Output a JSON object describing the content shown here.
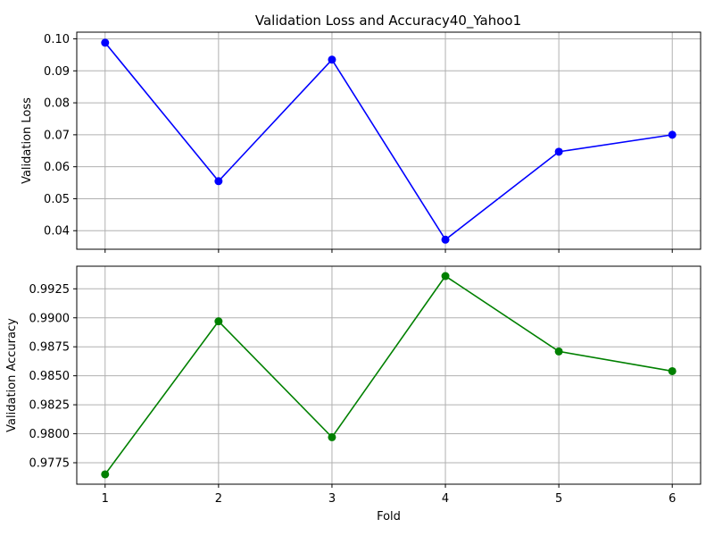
{
  "title": "Validation Loss and Accuracy40_Yahoo1",
  "chart_data": [
    {
      "type": "line",
      "title": "Validation Loss and Accuracy40_Yahoo1",
      "xlabel": "",
      "ylabel": "Validation Loss",
      "x": [
        1,
        2,
        3,
        4,
        5,
        6
      ],
      "xticks": [
        "1",
        "2",
        "3",
        "4",
        "5",
        "6"
      ],
      "xlim": [
        0.75,
        6.25
      ],
      "ylim": [
        0.0342,
        0.1021
      ],
      "yticks": [
        0.04,
        0.05,
        0.06,
        0.07,
        0.08,
        0.09,
        0.1
      ],
      "ytick_labels": [
        "0.04",
        "0.05",
        "0.06",
        "0.07",
        "0.08",
        "0.09",
        "0.10"
      ],
      "grid": true,
      "marker": "circle",
      "series": [
        {
          "color": "#0000ff",
          "values": [
            0.0988,
            0.0555,
            0.0935,
            0.0372,
            0.0647,
            0.07
          ]
        }
      ]
    },
    {
      "type": "line",
      "title": "",
      "xlabel": "Fold",
      "ylabel": "Validation Accuracy",
      "x": [
        1,
        2,
        3,
        4,
        5,
        6
      ],
      "xticks": [
        "1",
        "2",
        "3",
        "4",
        "5",
        "6"
      ],
      "xlim": [
        0.75,
        6.25
      ],
      "ylim": [
        0.97565,
        0.99445
      ],
      "yticks": [
        0.9775,
        0.98,
        0.9825,
        0.985,
        0.9875,
        0.99,
        0.9925
      ],
      "ytick_labels": [
        "0.9775",
        "0.9800",
        "0.9825",
        "0.9850",
        "0.9875",
        "0.9900",
        "0.9925"
      ],
      "grid": true,
      "marker": "circle",
      "series": [
        {
          "color": "#008000",
          "values": [
            0.9765,
            0.9897,
            0.9797,
            0.9936,
            0.9871,
            0.9854
          ]
        }
      ]
    }
  ]
}
